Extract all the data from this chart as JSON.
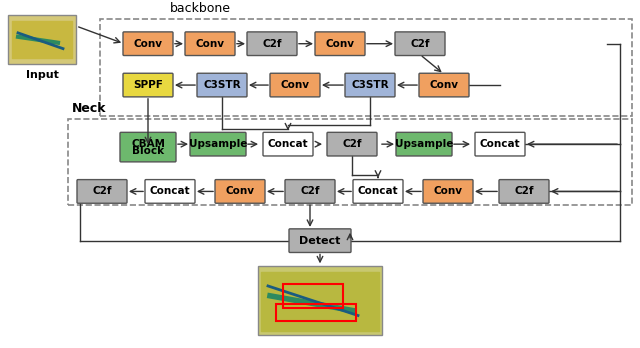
{
  "colors": {
    "conv": "#F0A060",
    "c2f": "#B0B0B0",
    "c3str": "#A0B4D8",
    "sppf": "#E8D840",
    "cbam": "#6DB86D",
    "upsample": "#6DB86D",
    "concat": "#FFFFFF",
    "detect": "#B0B0B0",
    "c2f_neck": "#B0B0B0",
    "conv_neck": "#F0A060",
    "background": "#FFFFFF",
    "dashed_border": "#888888",
    "arrow": "#444444"
  },
  "title_backbone": "backbone",
  "title_neck": "Neck",
  "label_input": "Input"
}
